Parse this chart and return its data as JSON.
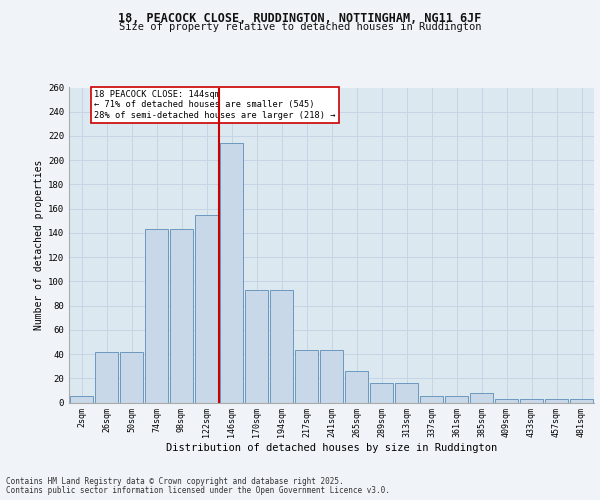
{
  "title1": "18, PEACOCK CLOSE, RUDDINGTON, NOTTINGHAM, NG11 6JF",
  "title2": "Size of property relative to detached houses in Ruddington",
  "xlabel": "Distribution of detached houses by size in Ruddington",
  "ylabel": "Number of detached properties",
  "categories": [
    "2sqm",
    "26sqm",
    "50sqm",
    "74sqm",
    "98sqm",
    "122sqm",
    "146sqm",
    "170sqm",
    "194sqm",
    "217sqm",
    "241sqm",
    "265sqm",
    "289sqm",
    "313sqm",
    "337sqm",
    "361sqm",
    "385sqm",
    "409sqm",
    "433sqm",
    "457sqm",
    "481sqm"
  ],
  "values": [
    5,
    42,
    42,
    143,
    143,
    155,
    214,
    93,
    93,
    43,
    43,
    26,
    16,
    16,
    5,
    5,
    8,
    3,
    3,
    3,
    3
  ],
  "bar_color": "#c8d8e8",
  "bar_edge_color": "#5b8db8",
  "red_line_index": 6,
  "annotation_text": "18 PEACOCK CLOSE: 144sqm\n← 71% of detached houses are smaller (545)\n28% of semi-detached houses are larger (218) →",
  "annotation_box_color": "#ffffff",
  "annotation_box_edge": "#cc0000",
  "red_line_color": "#cc0000",
  "grid_color": "#c5d5e5",
  "bg_color": "#dce8f0",
  "fig_bg_color": "#f0f4f8",
  "ylim": [
    0,
    260
  ],
  "yticks": [
    0,
    20,
    40,
    60,
    80,
    100,
    120,
    140,
    160,
    180,
    200,
    220,
    240,
    260
  ],
  "footer1": "Contains HM Land Registry data © Crown copyright and database right 2025.",
  "footer2": "Contains public sector information licensed under the Open Government Licence v3.0."
}
